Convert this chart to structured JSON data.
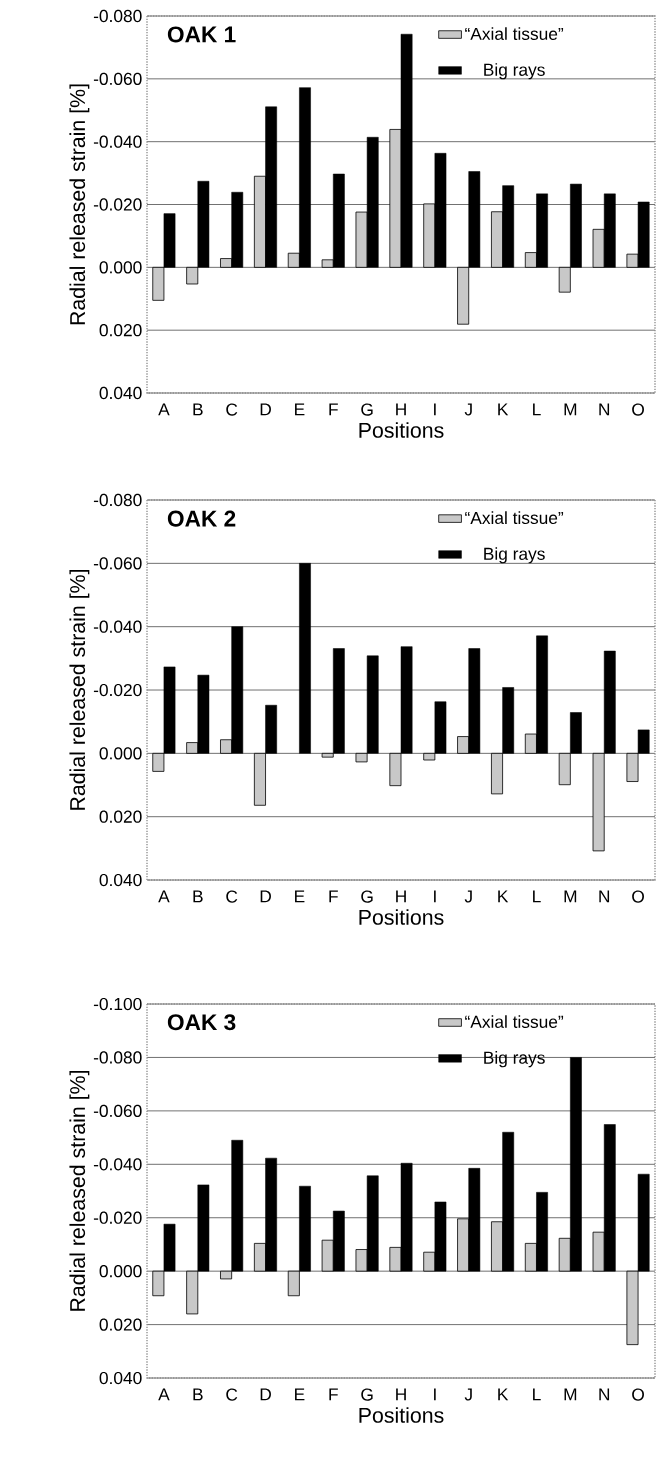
{
  "chart_data": [
    {
      "type": "bar",
      "title": "OAK 1",
      "xlabel": "Positions",
      "ylabel": "Radial released strain [%]",
      "categories": [
        "A",
        "B",
        "C",
        "D",
        "E",
        "F",
        "G",
        "H",
        "I",
        "J",
        "K",
        "L",
        "M",
        "N",
        "O"
      ],
      "series": [
        {
          "name": "“Axial tissue”",
          "color": "#c8c8c8",
          "values": [
            0.0105,
            0.0053,
            -0.0028,
            -0.029,
            -0.0045,
            -0.0024,
            -0.0176,
            -0.0439,
            -0.0202,
            0.0181,
            -0.0177,
            -0.0047,
            0.0079,
            -0.0121,
            -0.0042
          ]
        },
        {
          "name": "Big rays",
          "color": "#000000",
          "values": [
            -0.0171,
            -0.0274,
            -0.0239,
            -0.0511,
            -0.0572,
            -0.0297,
            -0.0414,
            -0.0742,
            -0.0363,
            -0.0305,
            -0.026,
            -0.0234,
            -0.0265,
            -0.0234,
            -0.0208
          ]
        }
      ],
      "ylim": [
        0.04,
        -0.08
      ],
      "yticks": [
        {
          "value": -0.08,
          "label": "-0.080"
        },
        {
          "value": -0.06,
          "label": "-0.060"
        },
        {
          "value": -0.04,
          "label": "-0.040"
        },
        {
          "value": -0.02,
          "label": "-0.020"
        },
        {
          "value": 0,
          "label": "0.000"
        },
        {
          "value": 0.02,
          "label": "0.020"
        },
        {
          "value": 0.04,
          "label": "0.040"
        }
      ],
      "grid": "y",
      "legend": "top right"
    },
    {
      "type": "bar",
      "title": "OAK 2",
      "xlabel": "Positions",
      "ylabel": "Radial released strain [%]",
      "categories": [
        "A",
        "B",
        "C",
        "D",
        "E",
        "F",
        "G",
        "H",
        "I",
        "J",
        "K",
        "L",
        "M",
        "N",
        "O"
      ],
      "series": [
        {
          "name": "“Axial tissue”",
          "color": "#c8c8c8",
          "values": [
            0.0057,
            -0.0034,
            -0.0043,
            0.0164,
            null,
            0.0012,
            0.0027,
            0.0102,
            0.0021,
            -0.0053,
            0.0128,
            -0.0061,
            0.0099,
            0.0308,
            0.0089
          ]
        },
        {
          "name": "Big rays",
          "color": "#000000",
          "values": [
            -0.0273,
            -0.0247,
            -0.04,
            -0.0152,
            -0.06,
            -0.0331,
            -0.0308,
            -0.0337,
            -0.0163,
            -0.0331,
            -0.0208,
            -0.0371,
            -0.0129,
            -0.0323,
            -0.0074
          ]
        }
      ],
      "ylim": [
        0.04,
        -0.08
      ],
      "yticks": [
        {
          "value": -0.08,
          "label": "-0.080"
        },
        {
          "value": -0.06,
          "label": "-0.060"
        },
        {
          "value": -0.04,
          "label": "-0.040"
        },
        {
          "value": -0.02,
          "label": "-0.020"
        },
        {
          "value": 0,
          "label": "0.000"
        },
        {
          "value": 0.02,
          "label": "0.020"
        },
        {
          "value": 0.04,
          "label": "0.040"
        }
      ],
      "grid": "y",
      "legend": "top right"
    },
    {
      "type": "bar",
      "title": "OAK 3",
      "xlabel": "Positions",
      "ylabel": "Radial released strain [%]",
      "categories": [
        "A",
        "B",
        "C",
        "D",
        "E",
        "F",
        "G",
        "H",
        "I",
        "J",
        "K",
        "L",
        "M",
        "N",
        "O"
      ],
      "series": [
        {
          "name": "“Axial tissue”",
          "color": "#c8c8c8",
          "values": [
            0.0092,
            0.016,
            0.0029,
            -0.0104,
            0.0092,
            -0.0116,
            -0.0081,
            -0.0089,
            -0.0071,
            -0.0196,
            -0.0185,
            -0.0104,
            -0.0123,
            -0.0146,
            0.0275
          ]
        },
        {
          "name": "Big rays",
          "color": "#000000",
          "values": [
            -0.0176,
            -0.0323,
            -0.049,
            -0.0423,
            -0.0318,
            -0.0225,
            -0.0357,
            -0.0404,
            -0.0259,
            -0.0385,
            -0.052,
            -0.0295,
            -0.08,
            -0.0549,
            -0.0363
          ]
        }
      ],
      "ylim": [
        0.04,
        -0.1
      ],
      "yticks": [
        {
          "value": -0.1,
          "label": "-0.100"
        },
        {
          "value": -0.08,
          "label": "-0.080"
        },
        {
          "value": -0.06,
          "label": "-0.060"
        },
        {
          "value": -0.04,
          "label": "-0.040"
        },
        {
          "value": -0.02,
          "label": "-0.020"
        },
        {
          "value": 0,
          "label": "0.000"
        },
        {
          "value": 0.02,
          "label": "0.020"
        },
        {
          "value": 0.04,
          "label": "0.040"
        }
      ],
      "grid": "y",
      "legend": "top right"
    }
  ]
}
